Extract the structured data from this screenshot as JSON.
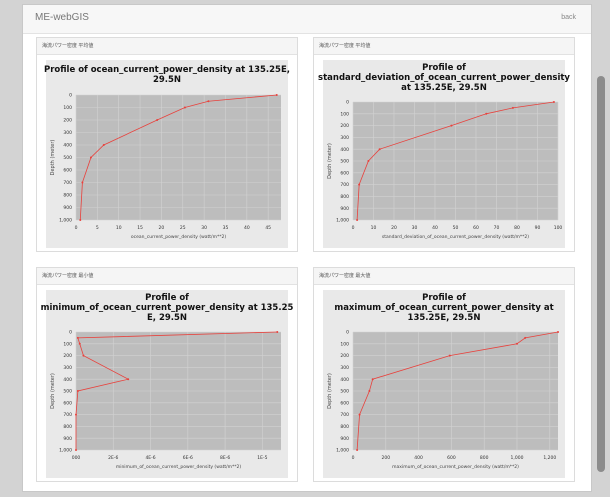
{
  "navbar": {
    "brand": "ME-webGIS",
    "back_label": "back"
  },
  "panels": [
    {
      "header": "海流パワー密度 平均値"
    },
    {
      "header": "海流パワー密度 平均値"
    },
    {
      "header": "海流パワー密度 最小値"
    },
    {
      "header": "海流パワー密度 最大値"
    }
  ],
  "chart_data": [
    {
      "type": "line",
      "title_lines": [
        "Profile of ocean_current_power_density at 135.25E,",
        "29.5N"
      ],
      "xlabel": "ocean_current_power_density (watt/m**2)",
      "ylabel": "Depth (meter)",
      "xlim": [
        0,
        48
      ],
      "ylim": [
        1000,
        0
      ],
      "x_ticks": [
        0,
        5,
        10,
        15,
        20,
        25,
        30,
        35,
        40,
        45
      ],
      "x_tick_labels": [
        "0",
        "5",
        "10",
        "15",
        "20",
        "25",
        "30",
        "35",
        "40",
        "45"
      ],
      "y_ticks": [
        0,
        100,
        200,
        300,
        400,
        500,
        600,
        700,
        800,
        900,
        1000
      ],
      "y_tick_labels": [
        "0",
        "100",
        "200",
        "300",
        "400",
        "500",
        "600",
        "700",
        "800",
        "900",
        "1,000"
      ],
      "line_color": "#e8413c",
      "background": "#bdbdbd",
      "grid": true,
      "points": [
        {
          "x": 47,
          "y": 0
        },
        {
          "x": 31,
          "y": 50
        },
        {
          "x": 25.5,
          "y": 100
        },
        {
          "x": 19,
          "y": 200
        },
        {
          "x": 6.5,
          "y": 400
        },
        {
          "x": 3.5,
          "y": 500
        },
        {
          "x": 1.5,
          "y": 700
        },
        {
          "x": 1,
          "y": 1000
        }
      ]
    },
    {
      "type": "line",
      "title_lines": [
        "Profile of",
        "standard_deviation_of_ocean_current_power_density",
        "at 135.25E, 29.5N"
      ],
      "xlabel": "standard_deviation_of_ocean_current_power_density (watt/m**2)",
      "ylabel": "Depth (meter)",
      "xlim": [
        0,
        100
      ],
      "ylim": [
        1000,
        0
      ],
      "x_ticks": [
        0,
        10,
        20,
        30,
        40,
        50,
        60,
        70,
        80,
        90,
        100
      ],
      "x_tick_labels": [
        "0",
        "10",
        "20",
        "30",
        "40",
        "50",
        "60",
        "70",
        "80",
        "90",
        "100"
      ],
      "y_ticks": [
        0,
        100,
        200,
        300,
        400,
        500,
        600,
        700,
        800,
        900,
        1000
      ],
      "y_tick_labels": [
        "0",
        "100",
        "200",
        "300",
        "400",
        "500",
        "600",
        "700",
        "800",
        "900",
        "1,000"
      ],
      "line_color": "#e8413c",
      "background": "#bdbdbd",
      "grid": true,
      "points": [
        {
          "x": 98,
          "y": 0
        },
        {
          "x": 78,
          "y": 50
        },
        {
          "x": 65,
          "y": 100
        },
        {
          "x": 48,
          "y": 200
        },
        {
          "x": 13,
          "y": 400
        },
        {
          "x": 7.5,
          "y": 500
        },
        {
          "x": 3,
          "y": 700
        },
        {
          "x": 2,
          "y": 1000
        }
      ]
    },
    {
      "type": "line",
      "title_lines": [
        "Profile of",
        "minimum_of_ocean_current_power_density at 135.25",
        "E, 29.5N"
      ],
      "xlabel": "minimum_of_ocean_current_power_density (watt/m**2)",
      "ylabel": "Depth (meter)",
      "xlim": [
        0,
        1.1e-05
      ],
      "ylim": [
        1000,
        0
      ],
      "x_ticks": [
        0,
        2e-06,
        4e-06,
        6e-06,
        8e-06,
        1e-05
      ],
      "x_tick_labels": [
        "000",
        "2E-6",
        "4E-6",
        "6E-6",
        "8E-6",
        "1E-5"
      ],
      "y_ticks": [
        0,
        100,
        200,
        300,
        400,
        500,
        600,
        700,
        800,
        900,
        1000
      ],
      "y_tick_labels": [
        "0",
        "100",
        "200",
        "300",
        "400",
        "500",
        "600",
        "700",
        "800",
        "900",
        "1,000"
      ],
      "line_color": "#e8413c",
      "background": "#bdbdbd",
      "grid": true,
      "points": [
        {
          "x": 1.08e-05,
          "y": 0
        },
        {
          "x": 1e-07,
          "y": 50
        },
        {
          "x": 2e-07,
          "y": 100
        },
        {
          "x": 4e-07,
          "y": 200
        },
        {
          "x": 2.8e-06,
          "y": 400
        },
        {
          "x": 1e-07,
          "y": 500
        },
        {
          "x": 0,
          "y": 700
        },
        {
          "x": 0,
          "y": 1000
        }
      ]
    },
    {
      "type": "line",
      "title_lines": [
        "Profile of",
        "maximum_of_ocean_current_power_density at",
        "135.25E, 29.5N"
      ],
      "xlabel": "maximum_of_ocean_current_power_density (watt/m**2)",
      "ylabel": "Depth (meter)",
      "xlim": [
        0,
        1250
      ],
      "ylim": [
        1000,
        0
      ],
      "x_ticks": [
        0,
        200,
        400,
        600,
        800,
        1000,
        1200
      ],
      "x_tick_labels": [
        "0",
        "200",
        "400",
        "600",
        "800",
        "1,000",
        "1,200"
      ],
      "y_ticks": [
        0,
        100,
        200,
        300,
        400,
        500,
        600,
        700,
        800,
        900,
        1000
      ],
      "y_tick_labels": [
        "0",
        "100",
        "200",
        "300",
        "400",
        "500",
        "600",
        "700",
        "800",
        "900",
        "1,000"
      ],
      "line_color": "#e8413c",
      "background": "#bdbdbd",
      "grid": true,
      "points": [
        {
          "x": 1250,
          "y": 0
        },
        {
          "x": 1050,
          "y": 50
        },
        {
          "x": 1000,
          "y": 100
        },
        {
          "x": 590,
          "y": 200
        },
        {
          "x": 120,
          "y": 400
        },
        {
          "x": 100,
          "y": 500
        },
        {
          "x": 40,
          "y": 700
        },
        {
          "x": 25,
          "y": 1000
        }
      ]
    }
  ]
}
